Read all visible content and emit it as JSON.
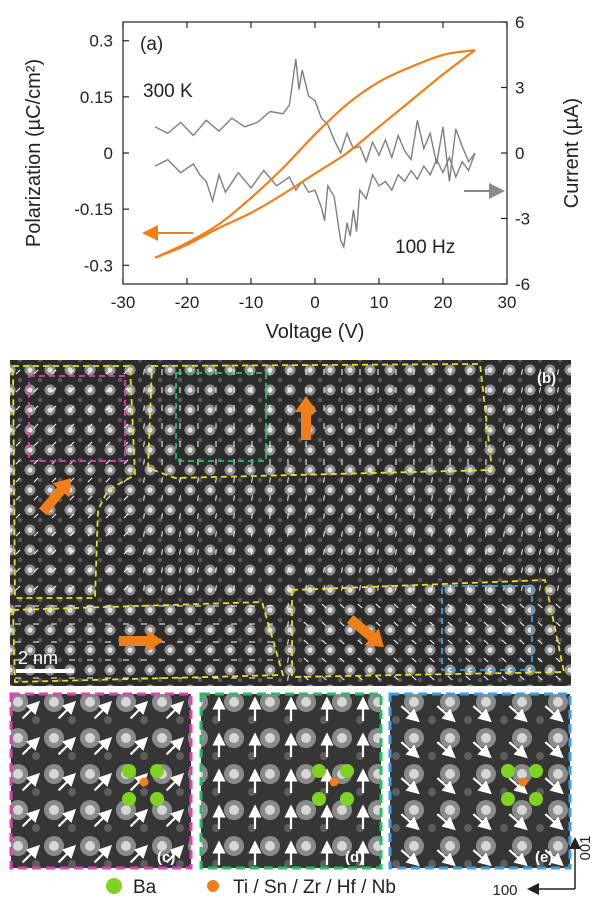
{
  "chart_data": {
    "type": "line",
    "panel_label": "(a)",
    "xlabel": "Voltage (V)",
    "ylabel_left": "Polarization (µC/cm²)",
    "ylabel_right": "Current (µA)",
    "xlim": [
      -30,
      30
    ],
    "ylim_left": [
      -0.35,
      0.35
    ],
    "ylim_right": [
      -6,
      6
    ],
    "x_ticks": [
      "-30",
      "-20",
      "-10",
      "0",
      "10",
      "20",
      "30"
    ],
    "y_left_ticks": [
      "0.3",
      "0.15",
      "0",
      "-0.15",
      "-0.3"
    ],
    "y_right_ticks": [
      "6",
      "3",
      "0",
      "-3",
      "-6"
    ],
    "annotations": {
      "temperature": "300 K",
      "frequency": "100 Hz"
    },
    "series": [
      {
        "axis": "left",
        "color": "#f07f1a",
        "upper_branch": [
          [
            -25,
            -0.28
          ],
          [
            -20,
            -0.24
          ],
          [
            -15,
            -0.19
          ],
          [
            -10,
            -0.12
          ],
          [
            -5,
            -0.04
          ],
          [
            0,
            0.05
          ],
          [
            5,
            0.13
          ],
          [
            10,
            0.19
          ],
          [
            15,
            0.23
          ],
          [
            20,
            0.262
          ],
          [
            25,
            0.275
          ]
        ],
        "lower_branch": [
          [
            25,
            0.275
          ],
          [
            20,
            0.21
          ],
          [
            15,
            0.14
          ],
          [
            10,
            0.07
          ],
          [
            5,
            0.0
          ],
          [
            0,
            -0.055
          ],
          [
            -5,
            -0.11
          ],
          [
            -10,
            -0.16
          ],
          [
            -15,
            -0.2
          ],
          [
            -20,
            -0.245
          ],
          [
            -25,
            -0.28
          ]
        ]
      },
      {
        "axis": "right",
        "color": "#7f7f7f",
        "branch_a": [
          [
            -25,
            1.2
          ],
          [
            -23,
            0.9
          ],
          [
            -21,
            1.4
          ],
          [
            -19,
            0.8
          ],
          [
            -17,
            1.5
          ],
          [
            -15,
            1.0
          ],
          [
            -13,
            1.6
          ],
          [
            -11,
            1.2
          ],
          [
            -9,
            1.4
          ],
          [
            -7,
            1.9
          ],
          [
            -5,
            1.8
          ],
          [
            -4,
            2.2
          ],
          [
            -3,
            4.3
          ],
          [
            -2.5,
            2.9
          ],
          [
            -2,
            3.8
          ],
          [
            -1,
            2.6
          ],
          [
            0,
            2.4
          ],
          [
            1,
            1.6
          ],
          [
            2,
            1.3
          ],
          [
            3,
            0.6
          ],
          [
            4,
            0.0
          ],
          [
            5,
            0.9
          ],
          [
            6,
            0.2
          ],
          [
            7,
            0.3
          ],
          [
            8,
            -0.4
          ],
          [
            9,
            0.5
          ],
          [
            10,
            -0.1
          ],
          [
            11,
            0.6
          ],
          [
            12,
            -0.2
          ],
          [
            13,
            0.8
          ],
          [
            14,
            0.1
          ],
          [
            15,
            -0.3
          ],
          [
            16,
            1.5
          ],
          [
            17,
            0.2
          ],
          [
            18,
            0.9
          ],
          [
            19,
            -0.5
          ],
          [
            20,
            1.2
          ],
          [
            21,
            -1.3
          ],
          [
            22,
            1.1
          ],
          [
            23,
            0.3
          ],
          [
            24,
            -0.4
          ],
          [
            25,
            0.0
          ]
        ],
        "branch_b": [
          [
            25,
            0.0
          ],
          [
            24,
            -0.8
          ],
          [
            23,
            -0.4
          ],
          [
            22,
            -1.1
          ],
          [
            21,
            -0.2
          ],
          [
            20,
            -0.9
          ],
          [
            19,
            -0.3
          ],
          [
            18,
            -1.0
          ],
          [
            17,
            -0.6
          ],
          [
            16,
            -1.2
          ],
          [
            15,
            -0.8
          ],
          [
            14,
            -1.3
          ],
          [
            13,
            -1.0
          ],
          [
            12,
            -1.7
          ],
          [
            11,
            -1.3
          ],
          [
            10,
            -1.5
          ],
          [
            9,
            -1.0
          ],
          [
            8,
            -2.1
          ],
          [
            7,
            -1.7
          ],
          [
            6.5,
            -3.6
          ],
          [
            6,
            -2.6
          ],
          [
            5.5,
            -3.8
          ],
          [
            5,
            -3.2
          ],
          [
            4.5,
            -4.3
          ],
          [
            4,
            -4.0
          ],
          [
            3,
            -2.0
          ],
          [
            2,
            -1.5
          ],
          [
            1.5,
            -3.1
          ],
          [
            1,
            -2.5
          ],
          [
            0,
            -1.7
          ],
          [
            -1,
            -1.8
          ],
          [
            -2,
            -1.3
          ],
          [
            -3,
            -1.7
          ],
          [
            -4,
            -1.1
          ],
          [
            -6,
            -1.5
          ],
          [
            -8,
            -0.8
          ],
          [
            -10,
            -1.6
          ],
          [
            -12,
            -0.9
          ],
          [
            -14,
            -1.8
          ],
          [
            -15,
            -1.0
          ],
          [
            -16,
            -2.2
          ],
          [
            -17,
            -1.3
          ],
          [
            -18,
            -1.0
          ],
          [
            -19,
            -0.5
          ],
          [
            -21,
            -0.9
          ],
          [
            -23,
            -0.3
          ],
          [
            -25,
            -0.6
          ]
        ]
      }
    ]
  },
  "image_panels": {
    "main_label": "(b)",
    "scale_bar": "2 nm",
    "insets": [
      {
        "label": "(c)",
        "color": "#e040b0",
        "direction": "up-right"
      },
      {
        "label": "(d)",
        "color": "#20c060",
        "direction": "up"
      },
      {
        "label": "(e)",
        "color": "#3aa0e0",
        "direction": "down-right"
      }
    ],
    "region_outline_color": "#e8e020",
    "polarization_arrow_color": "#f07f1a"
  },
  "legend": {
    "ba_label": "Ba",
    "ba_color": "#7ed321",
    "b_site_label": "Ti / Sn / Zr / Hf / Nb",
    "b_site_color": "#f07f1a"
  },
  "direction_axes": {
    "vertical": "001",
    "horizontal": "100"
  }
}
